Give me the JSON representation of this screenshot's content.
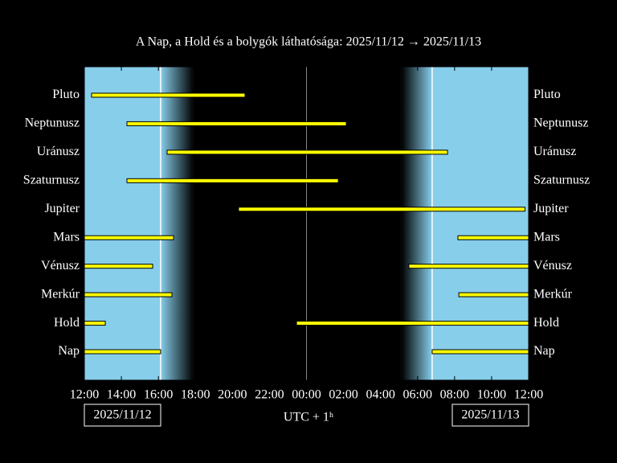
{
  "chart_data": {
    "type": "visibility",
    "title": "A Nap, a Hold és a bolygók láthatósága: 2025/11/12 → 2025/11/13",
    "xlabel": "UTC + 1ʰ",
    "start_date": "2025/11/12",
    "end_date": "2025/11/13",
    "xlim": [
      12,
      36
    ],
    "xticks": [
      {
        "value": 12,
        "label": "12:00"
      },
      {
        "value": 14,
        "label": "14:00"
      },
      {
        "value": 16,
        "label": "16:00"
      },
      {
        "value": 18,
        "label": "18:00"
      },
      {
        "value": 20,
        "label": "20:00"
      },
      {
        "value": 22,
        "label": "22:00"
      },
      {
        "value": 24,
        "label": "00:00"
      },
      {
        "value": 26,
        "label": "02:00"
      },
      {
        "value": 28,
        "label": "04:00"
      },
      {
        "value": 30,
        "label": "06:00"
      },
      {
        "value": 32,
        "label": "08:00"
      },
      {
        "value": 34,
        "label": "10:00"
      },
      {
        "value": 36,
        "label": "12:00"
      }
    ],
    "day_color": "#87ceeb",
    "night_color": "#000000",
    "bar_color": "#ffff00",
    "twilight": [
      [
        16.12,
        17.9
      ],
      [
        29.14,
        30.79
      ]
    ],
    "rows": [
      {
        "name": "Pluto",
        "segments": [
          [
            12.39,
            20.68
          ]
        ]
      },
      {
        "name": "Neptunusz",
        "segments": [
          [
            14.3,
            26.15
          ]
        ]
      },
      {
        "name": "Uránusz",
        "segments": [
          [
            16.47,
            31.62
          ]
        ]
      },
      {
        "name": "Szaturnusz",
        "segments": [
          [
            14.3,
            25.72
          ]
        ]
      },
      {
        "name": "Jupiter",
        "segments": [
          [
            20.33,
            35.8
          ]
        ]
      },
      {
        "name": "Mars",
        "segments": [
          [
            12,
            16.82
          ],
          [
            32.18,
            36
          ]
        ]
      },
      {
        "name": "Vénusz",
        "segments": [
          [
            12,
            15.69
          ],
          [
            29.53,
            36
          ]
        ]
      },
      {
        "name": "Merkúr",
        "segments": [
          [
            12,
            16.73
          ],
          [
            32.23,
            36
          ]
        ]
      },
      {
        "name": "Hold",
        "segments": [
          [
            12,
            13.13
          ],
          [
            23.46,
            36
          ]
        ]
      },
      {
        "name": "Nap",
        "segments": [
          [
            12,
            16.12
          ],
          [
            30.79,
            36
          ]
        ]
      }
    ]
  }
}
